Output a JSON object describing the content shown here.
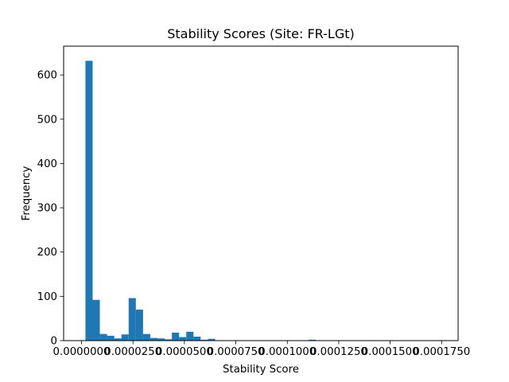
{
  "chart_data": {
    "type": "bar",
    "title": "Stability Scores (Site: FR-LGt)",
    "xlabel": "Stability Score",
    "ylabel": "Frequency",
    "xlim": [
      -8.7e-06,
      0.000183
    ],
    "ylim": [
      0,
      665
    ],
    "bar_color": "#1f77b4",
    "grid": false,
    "x_ticks": [
      {
        "value": 0.0,
        "label": "0.0000000"
      },
      {
        "value": 2.5e-05,
        "label": "0.0000250"
      },
      {
        "value": 5e-05,
        "label": "0.0000500"
      },
      {
        "value": 7.5e-05,
        "label": "0.0000750"
      },
      {
        "value": 0.0001,
        "label": "0.0001000"
      },
      {
        "value": 0.000125,
        "label": "0.0001250"
      },
      {
        "value": 0.00015,
        "label": "0.0001500"
      },
      {
        "value": 0.000175,
        "label": "0.0001750"
      }
    ],
    "y_ticks": [
      {
        "value": 0,
        "label": "0"
      },
      {
        "value": 100,
        "label": "100"
      },
      {
        "value": 200,
        "label": "200"
      },
      {
        "value": 300,
        "label": "300"
      },
      {
        "value": 400,
        "label": "400"
      },
      {
        "value": 500,
        "label": "500"
      },
      {
        "value": 600,
        "label": "600"
      }
    ],
    "bin_start": 1.9e-06,
    "bin_width": 3.5e-06,
    "values": [
      632,
      92,
      15,
      11,
      5,
      14,
      96,
      70,
      15,
      6,
      5,
      3,
      18,
      8,
      20,
      9,
      2,
      4,
      0,
      0,
      0,
      0,
      0,
      0,
      0,
      0,
      0,
      0,
      0,
      0,
      0,
      2,
      0,
      0,
      0,
      0,
      0,
      0,
      0,
      0,
      0,
      0,
      0,
      0,
      0,
      0,
      0,
      0,
      0,
      1
    ]
  }
}
